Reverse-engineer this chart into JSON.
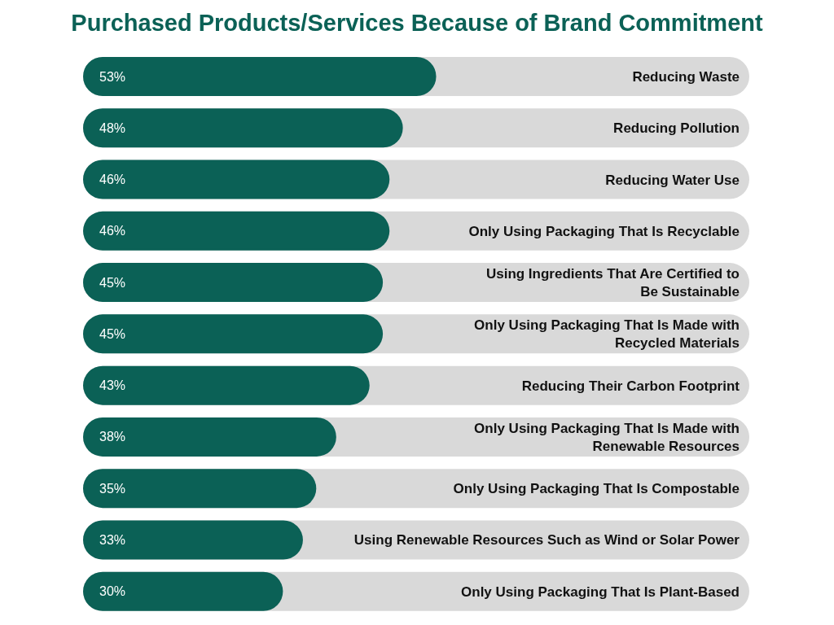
{
  "chart_data": {
    "type": "bar",
    "orientation": "horizontal",
    "title": "Purchased Products/Services Because of Brand Commitment",
    "categories": [
      "Reducing Waste",
      "Reducing Pollution",
      "Reducing Water Use",
      "Only Using Packaging That Is Recyclable",
      "Using Ingredients That Are Certified to\nBe Sustainable",
      "Only Using Packaging That Is Made with\nRecycled Materials",
      "Reducing Their Carbon Footprint",
      "Only Using Packaging That Is Made with\nRenewable Resources",
      "Only Using Packaging That Is Compostable",
      "Using Renewable Resources Such as Wind or Solar Power",
      "Only Using Packaging That Is Plant-Based"
    ],
    "values": [
      53,
      48,
      46,
      46,
      45,
      45,
      43,
      38,
      35,
      33,
      30
    ],
    "color": "#0b6156",
    "value_labels": [
      "53%",
      "48%",
      "46%",
      "46%",
      "45%",
      "45%",
      "43%",
      "38%",
      "35%",
      "33%",
      "30%"
    ],
    "xlim": [
      0,
      100
    ],
    "tick_labels": "y"
  }
}
